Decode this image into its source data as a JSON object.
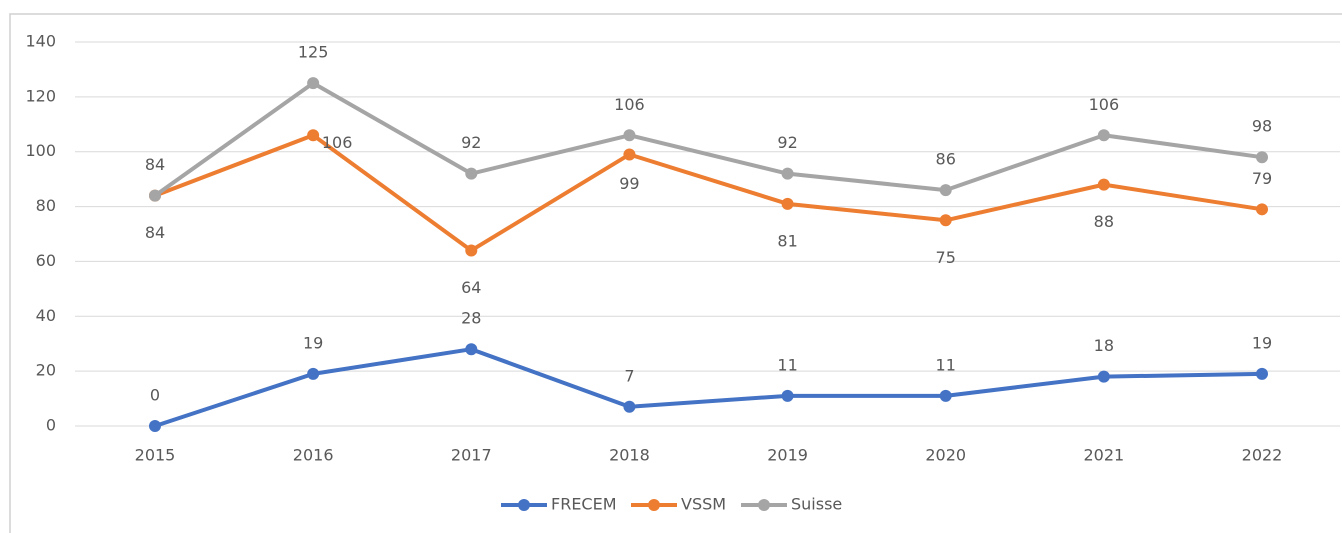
{
  "chart_data": {
    "type": "line",
    "categories": [
      "2015",
      "2016",
      "2017",
      "2018",
      "2019",
      "2020",
      "2021",
      "2022"
    ],
    "series": [
      {
        "name": "FRECEM",
        "color": "#4472c4",
        "values": [
          0,
          19,
          28,
          7,
          11,
          11,
          18,
          19
        ]
      },
      {
        "name": "VSSM",
        "color": "#ed7d31",
        "values": [
          84,
          106,
          64,
          99,
          81,
          75,
          88,
          79
        ]
      },
      {
        "name": "Suisse",
        "color": "#a5a5a5",
        "values": [
          84,
          125,
          92,
          106,
          92,
          86,
          106,
          98
        ]
      }
    ],
    "ylim": [
      0,
      140
    ],
    "yticks": [
      0,
      20,
      40,
      60,
      80,
      100,
      120,
      140
    ],
    "grid": true,
    "legend": "bottom"
  }
}
